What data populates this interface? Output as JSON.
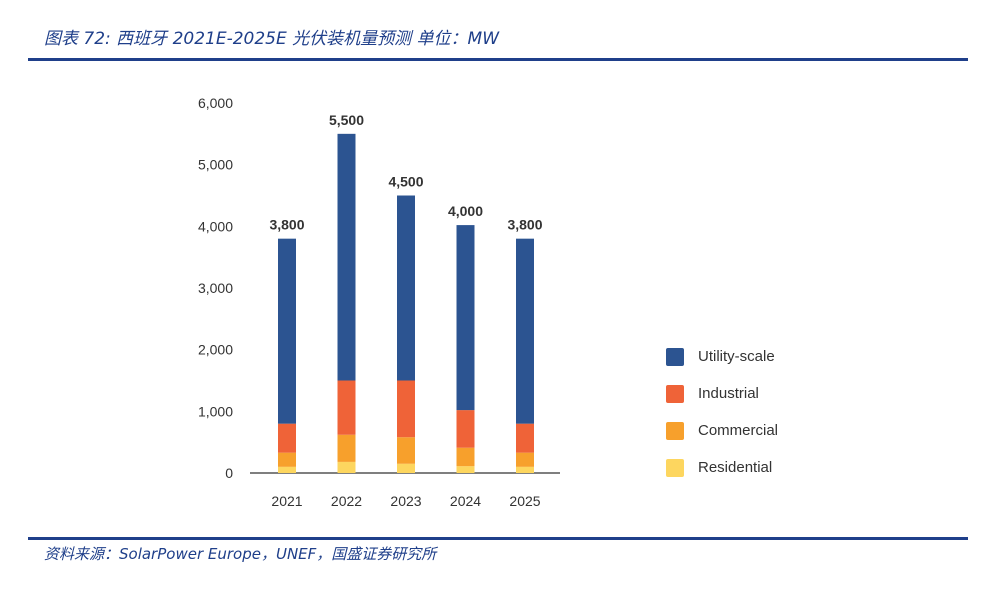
{
  "figure": {
    "title": "图表 72: 西班牙 2021E-2025E 光伏装机量预测 单位：MW",
    "source": "资料来源：SolarPower Europe，UNEF，国盛证券研究所"
  },
  "chart_data": {
    "type": "bar",
    "stacked": true,
    "categories": [
      "2021",
      "2022",
      "2023",
      "2024",
      "2025"
    ],
    "series": [
      {
        "name": "Residential",
        "color": "#fdd65f",
        "values": [
          100,
          180,
          150,
          110,
          100
        ]
      },
      {
        "name": "Commercial",
        "color": "#f7a02c",
        "values": [
          230,
          440,
          430,
          300,
          230
        ]
      },
      {
        "name": "Industrial",
        "color": "#ef6338",
        "values": [
          470,
          880,
          920,
          610,
          470
        ]
      },
      {
        "name": "Utility-scale",
        "color": "#2c5491",
        "values": [
          3000,
          4000,
          3000,
          3000,
          3000
        ]
      }
    ],
    "totals": [
      "3,800",
      "5,500",
      "4,500",
      "4,000",
      "3,800"
    ],
    "yticks": [
      "0",
      "1,000",
      "2,000",
      "3,000",
      "4,000",
      "5,000",
      "6,000"
    ],
    "ylim": [
      0,
      6000
    ],
    "legend_position": "right",
    "grid": false
  }
}
